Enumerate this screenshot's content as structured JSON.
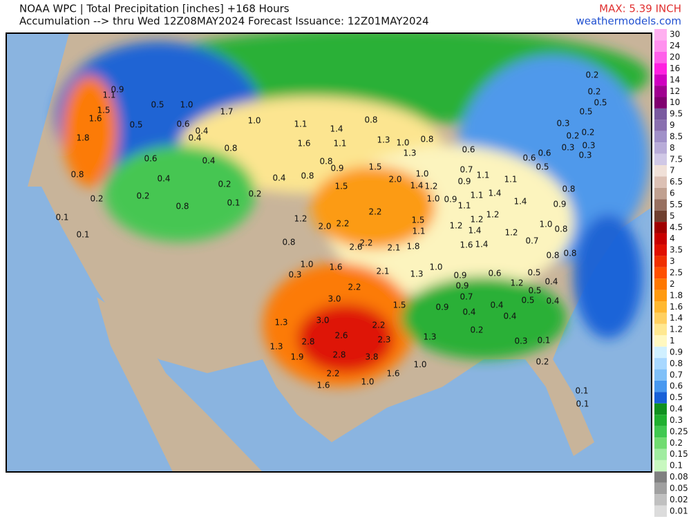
{
  "header": {
    "title_line1": "NOAA WPC | Total Precipitation [inches] +168 Hours",
    "title_line2": "Accumulation --> thru Wed 12Z08MAY2024   Forecast Issuance: 12Z01MAY2024",
    "max": "MAX: 5.39 INCH",
    "site": "weathermodels.com"
  },
  "legend": [
    {
      "label": "30",
      "color": "#ffb0f0"
    },
    {
      "label": "24",
      "color": "#ff90ee"
    },
    {
      "label": "20",
      "color": "#ff60ea"
    },
    {
      "label": "16",
      "color": "#ff20e0"
    },
    {
      "label": "14",
      "color": "#d000c0"
    },
    {
      "label": "12",
      "color": "#a00090"
    },
    {
      "label": "10",
      "color": "#800070"
    },
    {
      "label": "9.5",
      "color": "#7a5aa0"
    },
    {
      "label": "9",
      "color": "#8a70b0"
    },
    {
      "label": "8.5",
      "color": "#a090c8"
    },
    {
      "label": "8",
      "color": "#b8acd8"
    },
    {
      "label": "7.5",
      "color": "#d0c8e6"
    },
    {
      "label": "7",
      "color": "#f0e0d8"
    },
    {
      "label": "6.5",
      "color": "#dcc0b4"
    },
    {
      "label": "6",
      "color": "#c0a090"
    },
    {
      "label": "5.5",
      "color": "#987060"
    },
    {
      "label": "5",
      "color": "#704030"
    },
    {
      "label": "4.5",
      "color": "#a00000"
    },
    {
      "label": "4",
      "color": "#c80000"
    },
    {
      "label": "3.5",
      "color": "#e01000"
    },
    {
      "label": "3",
      "color": "#f03000"
    },
    {
      "label": "2.5",
      "color": "#ff5000"
    },
    {
      "label": "2",
      "color": "#ff7800"
    },
    {
      "label": "1.8",
      "color": "#ff9a10"
    },
    {
      "label": "1.6",
      "color": "#ffb830"
    },
    {
      "label": "1.4",
      "color": "#ffd060"
    },
    {
      "label": "1.2",
      "color": "#ffe890"
    },
    {
      "label": "1",
      "color": "#fff8c0"
    },
    {
      "label": "0.9",
      "color": "#d0f0ff"
    },
    {
      "label": "0.8",
      "color": "#a8d8ff"
    },
    {
      "label": "0.7",
      "color": "#80c0f8"
    },
    {
      "label": "0.6",
      "color": "#4898f0"
    },
    {
      "label": "0.5",
      "color": "#1860d8"
    },
    {
      "label": "0.4",
      "color": "#109020"
    },
    {
      "label": "0.3",
      "color": "#20b030"
    },
    {
      "label": "0.25",
      "color": "#40c850"
    },
    {
      "label": "0.2",
      "color": "#70dc70"
    },
    {
      "label": "0.15",
      "color": "#a0eca0"
    },
    {
      "label": "0.1",
      "color": "#c8f8c0"
    },
    {
      "label": "0.08",
      "color": "#808080"
    },
    {
      "label": "0.05",
      "color": "#a0a0a0"
    },
    {
      "label": "0.02",
      "color": "#c0c0c0"
    },
    {
      "label": "0.01",
      "color": "#dcdcdc"
    }
  ],
  "map_labels": [
    "1.1",
    "0.9",
    "1.5",
    "1.6",
    "1.8",
    "0.5",
    "1.0",
    "1.7",
    "1.0",
    "1.1",
    "1.4",
    "0.5",
    "0.6",
    "0.4",
    "0.4",
    "0.8",
    "1.6",
    "1.1",
    "0.8",
    "1.3",
    "1.0",
    "0.8",
    "1.3",
    "0.6",
    "0.8",
    "0.4",
    "0.4",
    "0.8",
    "0.9",
    "1.5",
    "0.8",
    "0.4",
    "0.2",
    "0.2",
    "2.0",
    "1.4",
    "1.2",
    "1.0",
    "1.5",
    "0.2",
    "0.2",
    "0.8",
    "0.1",
    "2.2",
    "1.2",
    "2.0",
    "2.2",
    "1.5",
    "1.1",
    "1.8",
    "2.6",
    "2.2",
    "2.1",
    "0.8",
    "1.0",
    "1.6",
    "0.3",
    "2.1",
    "1.3",
    "1.0",
    "2.2",
    "3.0",
    "1.5",
    "1.3",
    "3.0",
    "2.2",
    "2.6",
    "2.3",
    "2.8",
    "1.3",
    "1.9",
    "2.8",
    "3.8",
    "2.2",
    "1.6",
    "1.0",
    "1.6",
    "1.0",
    "1.3",
    "0.9",
    "0.9",
    "0.7",
    "0.9",
    "0.4",
    "0.6",
    "0.4",
    "0.4",
    "1.2",
    "0.5",
    "0.5",
    "0.4",
    "0.5",
    "0.4",
    "0.1",
    "0.3",
    "0.2",
    "0.2",
    "0.1",
    "0.2",
    "0.5",
    "0.5",
    "0.3",
    "0.2",
    "0.2",
    "0.3",
    "0.3",
    "0.3",
    "0.6",
    "0.5",
    "0.6",
    "0.8",
    "1.1",
    "1.4",
    "1.4",
    "1.2",
    "1.1",
    "0.9",
    "1.1",
    "0.7",
    "0.6",
    "0.9",
    "1.0",
    "1.1",
    "1.2",
    "1.2",
    "1.4",
    "1.4",
    "1.6",
    "1.2",
    "1.0",
    "0.8",
    "0.7",
    "0.8",
    "0.8",
    "0.9",
    "0.1",
    "0.1",
    "0.1",
    "0.2"
  ]
}
